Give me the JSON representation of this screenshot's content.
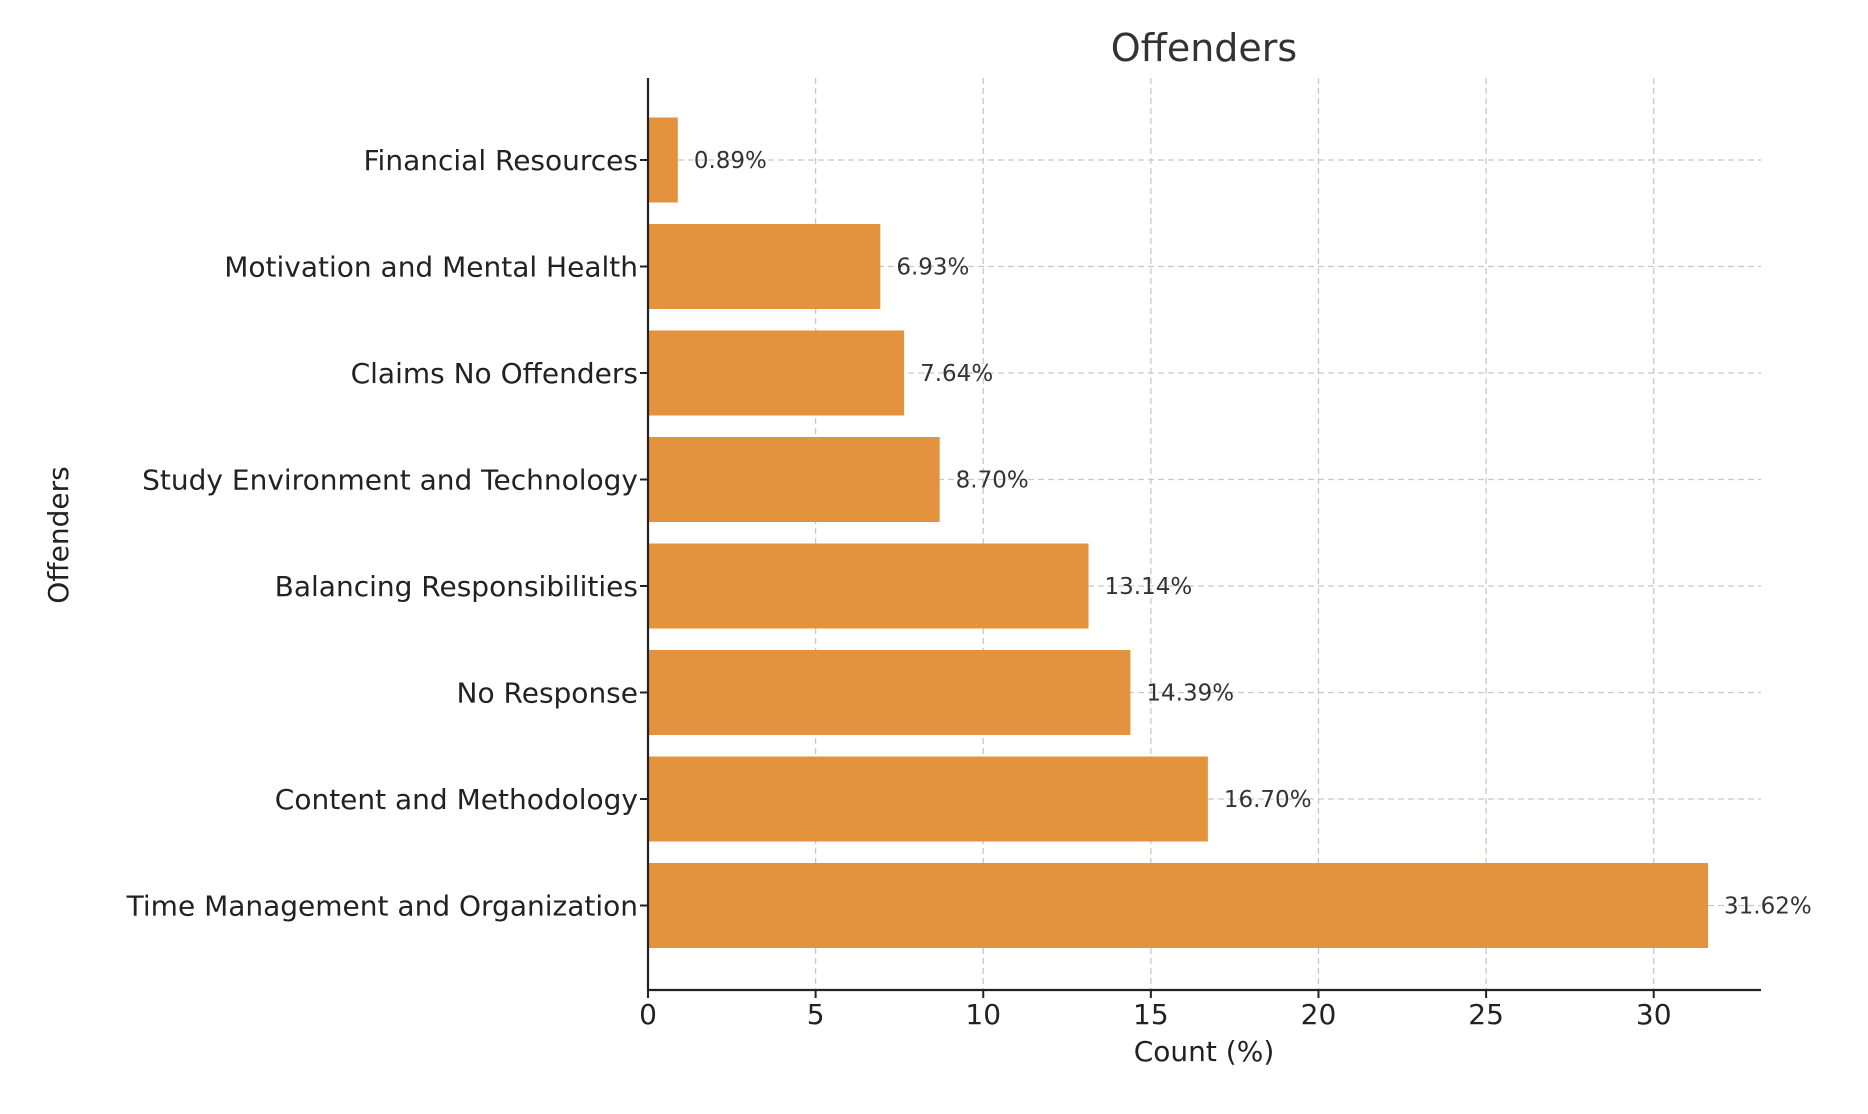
{
  "chart_data": {
    "type": "bar",
    "orientation": "horizontal",
    "title": "Offenders",
    "xlabel": "Count (%)",
    "ylabel": "Offenders",
    "xlim": [
      0,
      33.2
    ],
    "xticks": [
      0,
      5,
      10,
      15,
      20,
      25,
      30
    ],
    "grid": true,
    "bar_color": "#E3923E",
    "categories": [
      "Financial Resources",
      "Motivation and Mental Health",
      "Claims No Offenders",
      "Study Environment and Technology",
      "Balancing Responsibilities",
      "No Response",
      "Content and Methodology",
      "Time Management and Organization"
    ],
    "values": [
      0.89,
      6.93,
      7.64,
      8.7,
      13.14,
      14.39,
      16.7,
      31.62
    ],
    "data_labels": [
      "0.89%",
      "6.93%",
      "7.64%",
      "8.70%",
      "13.14%",
      "14.39%",
      "16.70%",
      "31.62%"
    ]
  }
}
